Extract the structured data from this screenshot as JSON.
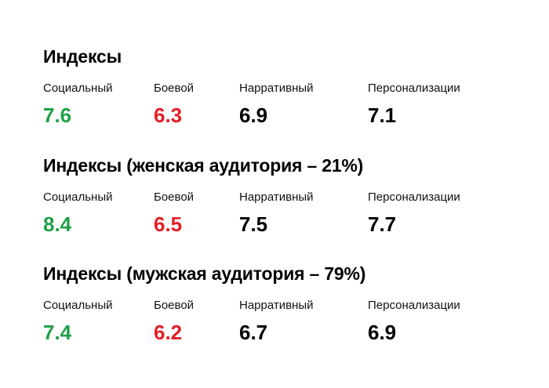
{
  "colors": {
    "positive": "#1fa047",
    "negative": "#e41e26",
    "neutral": "#000000"
  },
  "sections": [
    {
      "title": "Индексы",
      "metrics": [
        {
          "label": "Социальный",
          "value": "7.6",
          "tone": "positive"
        },
        {
          "label": "Боевой",
          "value": "6.3",
          "tone": "negative"
        },
        {
          "label": "Нарративный",
          "value": "6.9",
          "tone": "neutral"
        },
        {
          "label": "Персонализации",
          "value": "7.1",
          "tone": "neutral"
        }
      ]
    },
    {
      "title": "Индексы (женская аудитория – 21%)",
      "metrics": [
        {
          "label": "Социальный",
          "value": "8.4",
          "tone": "positive"
        },
        {
          "label": "Боевой",
          "value": "6.5",
          "tone": "negative"
        },
        {
          "label": "Нарративный",
          "value": "7.5",
          "tone": "neutral"
        },
        {
          "label": "Персонализации",
          "value": "7.7",
          "tone": "neutral"
        }
      ]
    },
    {
      "title": "Индексы (мужская аудитория – 79%)",
      "metrics": [
        {
          "label": "Социальный",
          "value": "7.4",
          "tone": "positive"
        },
        {
          "label": "Боевой",
          "value": "6.2",
          "tone": "negative"
        },
        {
          "label": "Нарративный",
          "value": "6.7",
          "tone": "neutral"
        },
        {
          "label": "Персонализации",
          "value": "6.9",
          "tone": "neutral"
        }
      ]
    }
  ]
}
